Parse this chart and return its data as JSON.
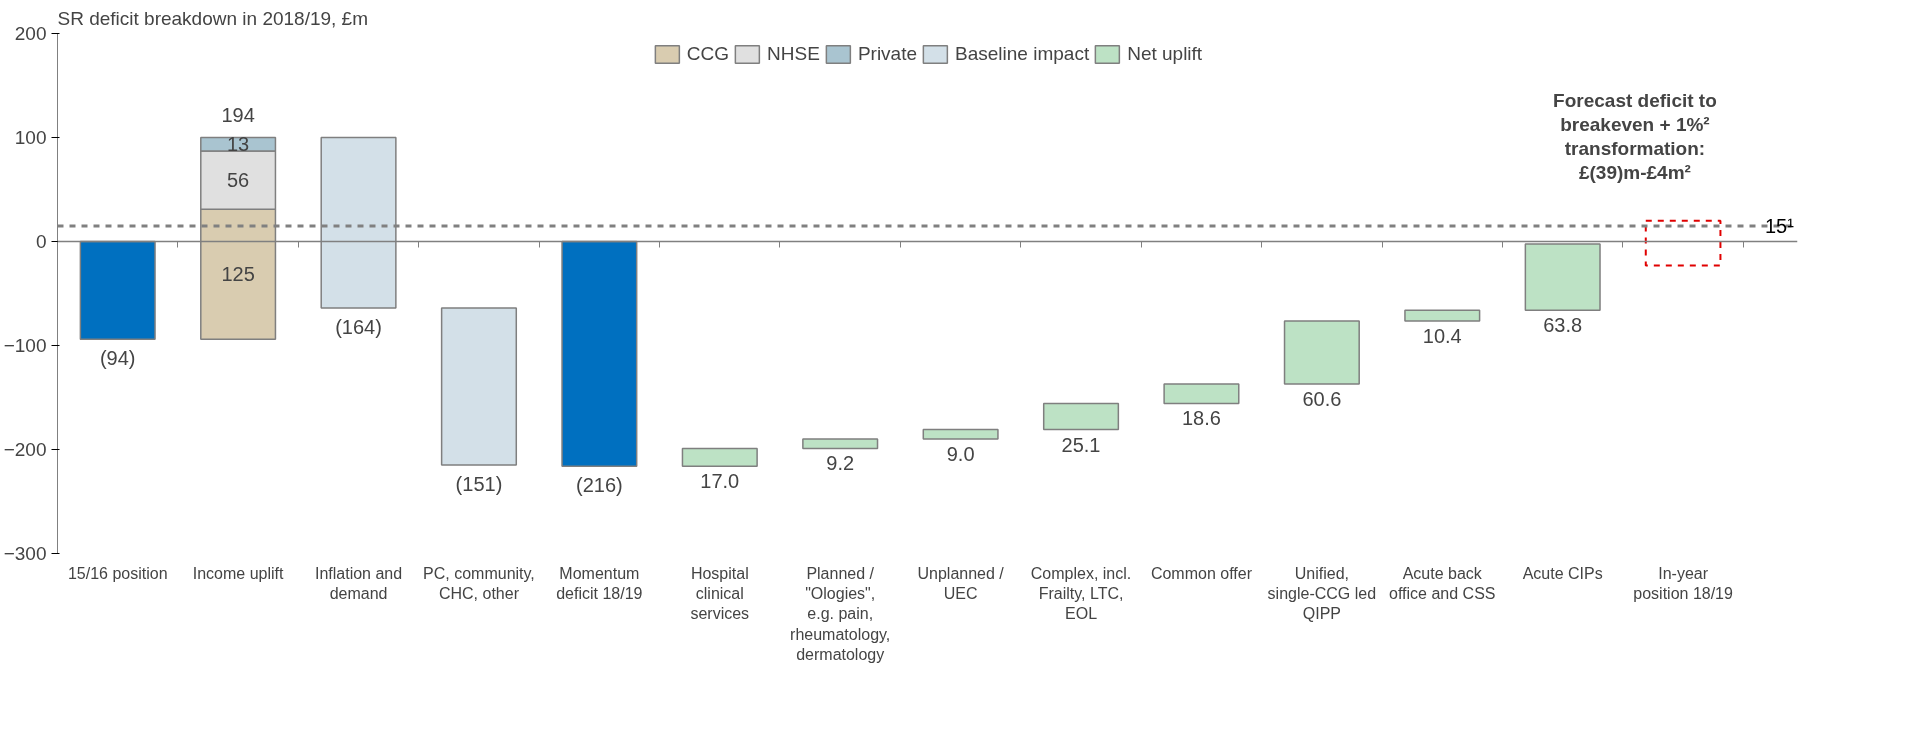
{
  "chart_data": {
    "type": "bar",
    "ylabel": "SR deficit breakdown in 2018/19, £m",
    "categories": [
      "15/16 position",
      "Income uplift",
      "Inflation and demand",
      "PC, community, CHC, other",
      "Momentum deficit 18/19",
      "Hospital clinical services",
      "Planned / \"Ologies\", e.g. pain, rheumatology, dermatology",
      "Unplanned / UEC",
      "Complex, incl. Frailty, LTC, EOL",
      "Common offer",
      "Unified, single-CCG led QIPP",
      "Acute back office and CSS",
      "Acute CIPs",
      "In-year position 18/19"
    ],
    "series": [
      {
        "color": "#0070c0",
        "values": [
          -94,
          null,
          null,
          null,
          -216,
          null,
          null,
          null,
          null,
          null,
          null,
          null,
          null,
          null
        ],
        "base": [
          0,
          null,
          null,
          null,
          0,
          null,
          null,
          null,
          null,
          null,
          null,
          null,
          null,
          null
        ],
        "value_labels": [
          "(94)",
          null,
          null,
          null,
          "(216)",
          null,
          null,
          null,
          null,
          null,
          null,
          null,
          null,
          null
        ]
      },
      {
        "name": "CCG",
        "color": "#d9ccb0",
        "values": [
          null,
          125,
          null,
          null,
          null,
          null,
          null,
          null,
          null,
          null,
          null,
          null,
          null,
          null
        ],
        "base": [
          null,
          -94,
          null,
          null,
          null,
          null,
          null,
          null,
          null,
          null,
          null,
          null,
          null,
          null
        ],
        "value_labels": [
          null,
          "125",
          null,
          null,
          null,
          null,
          null,
          null,
          null,
          null,
          null,
          null,
          null,
          null
        ]
      },
      {
        "name": "NHSE",
        "color": "#e0e0e0",
        "values": [
          null,
          56,
          null,
          null,
          null,
          null,
          null,
          null,
          null,
          null,
          null,
          null,
          null,
          null
        ],
        "base": [
          null,
          31,
          null,
          null,
          null,
          null,
          null,
          null,
          null,
          null,
          null,
          null,
          null,
          null
        ],
        "value_labels": [
          null,
          "56",
          null,
          null,
          null,
          null,
          null,
          null,
          null,
          null,
          null,
          null,
          null,
          null
        ]
      },
      {
        "name": "Private",
        "color": "#a9c4d0",
        "values": [
          null,
          13,
          null,
          null,
          null,
          null,
          null,
          null,
          null,
          null,
          null,
          null,
          null,
          null
        ],
        "base": [
          null,
          87,
          null,
          null,
          null,
          null,
          null,
          null,
          null,
          null,
          null,
          null,
          null,
          null
        ],
        "value_labels": [
          null,
          "13",
          null,
          null,
          null,
          null,
          null,
          null,
          null,
          null,
          null,
          null,
          null,
          null
        ]
      },
      {
        "name": "Baseline impact",
        "color": "#d3e0e8",
        "values": [
          null,
          null,
          -164,
          -151,
          null,
          null,
          null,
          null,
          null,
          null,
          null,
          null,
          null,
          null
        ],
        "base": [
          null,
          null,
          100,
          -64,
          null,
          null,
          null,
          null,
          null,
          null,
          null,
          null,
          null,
          null
        ],
        "value_labels": [
          null,
          null,
          "(164)",
          "(151)",
          null,
          null,
          null,
          null,
          null,
          null,
          null,
          null,
          null,
          null
        ]
      },
      {
        "name": "Net uplift",
        "color": "#bde2c5",
        "values": [
          null,
          null,
          null,
          null,
          null,
          17.0,
          9.2,
          9.0,
          25.1,
          18.6,
          60.6,
          10.4,
          63.8,
          null
        ],
        "base": [
          null,
          null,
          null,
          null,
          null,
          -216,
          -199,
          -189.8,
          -180.8,
          -155.7,
          -137.1,
          -76.5,
          -66.1,
          null
        ],
        "value_labels": [
          null,
          null,
          null,
          null,
          null,
          "17.0",
          "9.2",
          "9.0",
          "25.1",
          "18.6",
          "60.6",
          "10.4",
          "63.8",
          null
        ]
      },
      {
        "color": "#e00000",
        "line_style": "dashed",
        "values": [
          null,
          null,
          null,
          null,
          null,
          null,
          null,
          null,
          null,
          null,
          null,
          null,
          null,
          43
        ],
        "base": [
          null,
          null,
          null,
          null,
          null,
          null,
          null,
          null,
          null,
          null,
          null,
          null,
          null,
          -23
        ]
      }
    ],
    "totals": [
      null,
      "194",
      null,
      null,
      null,
      null,
      null,
      null,
      null,
      null,
      null,
      null,
      null,
      null
    ],
    "ref_lines": [
      {
        "axis": "y",
        "value": 0,
        "color": "#808080",
        "line_style": "solid"
      },
      {
        "axis": "y",
        "value": 15,
        "label": "15¹",
        "color": "#808080",
        "line_style": "dashed"
      }
    ],
    "annotations": [
      "Forecast deficit to breakeven + 1%² transformation: £(39)m-£4m²"
    ],
    "ylim": [
      -300,
      200
    ],
    "yticks": [
      -300,
      -200,
      -100,
      0,
      100,
      200
    ],
    "grid": false,
    "legend": "top"
  }
}
